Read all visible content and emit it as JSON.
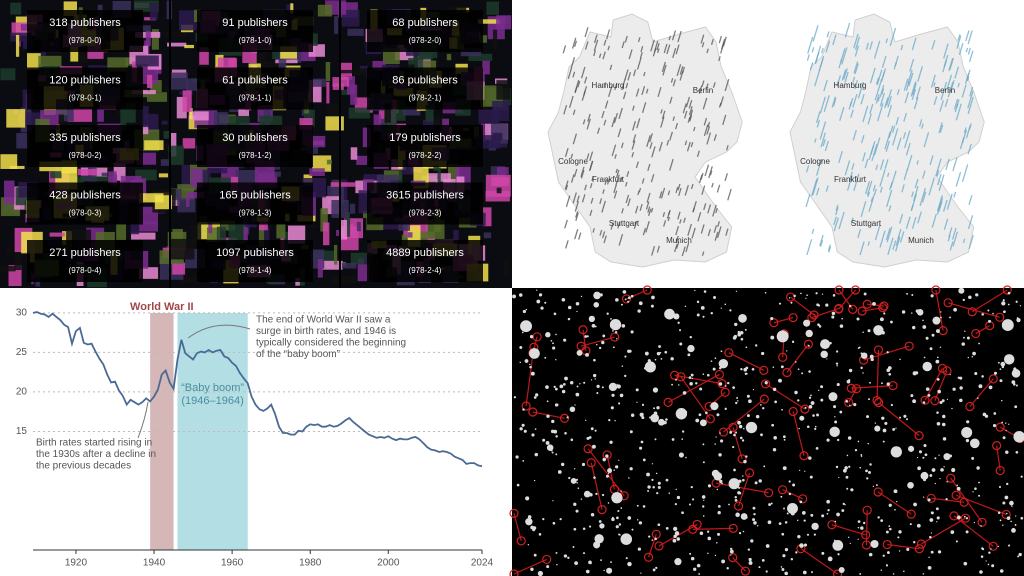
{
  "treemap": {
    "tiles": [
      {
        "count": "318 publishers",
        "prefix": "(978-0-0)"
      },
      {
        "count": "120 publishers",
        "prefix": "(978-0-1)"
      },
      {
        "count": "335 publishers",
        "prefix": "(978-0-2)"
      },
      {
        "count": "428 publishers",
        "prefix": "(978-0-3)"
      },
      {
        "count": "271 publishers",
        "prefix": "(978-0-4)"
      },
      {
        "count": "91 publishers",
        "prefix": "(978-1-0)"
      },
      {
        "count": "61 publishers",
        "prefix": "(978-1-1)"
      },
      {
        "count": "30 publishers",
        "prefix": "(978-1-2)"
      },
      {
        "count": "165 publishers",
        "prefix": "(978-1-3)"
      },
      {
        "count": "1097 publishers",
        "prefix": "(978-1-4)"
      },
      {
        "count": "68 publishers",
        "prefix": "(978-2-0)"
      },
      {
        "count": "86 publishers",
        "prefix": "(978-2-1)"
      },
      {
        "count": "179 publishers",
        "prefix": "(978-2-2)"
      },
      {
        "count": "3615 publishers",
        "prefix": "(978-2-3)"
      },
      {
        "count": "4889 publishers",
        "prefix": "(978-2-4)"
      }
    ]
  },
  "maps": [
    {
      "labels": [
        "Hamburg",
        "Berlin",
        "Cologne",
        "Frankfurt",
        "Stuttgart",
        "Munich"
      ]
    },
    {
      "labels": [
        "Hamburg",
        "Berlin",
        "Cologne",
        "Frankfurt",
        "Stuttgart",
        "Munich"
      ]
    }
  ],
  "chart_data": {
    "type": "line",
    "color": "#4a6a95",
    "x": [
      1909,
      1910,
      1911,
      1912,
      1913,
      1914,
      1915,
      1916,
      1917,
      1918,
      1919,
      1920,
      1921,
      1922,
      1923,
      1924,
      1925,
      1926,
      1927,
      1928,
      1929,
      1930,
      1931,
      1932,
      1933,
      1934,
      1935,
      1936,
      1937,
      1938,
      1939,
      1940,
      1941,
      1942,
      1943,
      1944,
      1945,
      1946,
      1947,
      1948,
      1949,
      1950,
      1951,
      1952,
      1953,
      1954,
      1955,
      1956,
      1957,
      1958,
      1959,
      1960,
      1961,
      1962,
      1963,
      1964,
      1965,
      1966,
      1967,
      1968,
      1969,
      1970,
      1971,
      1972,
      1973,
      1974,
      1975,
      1976,
      1977,
      1978,
      1979,
      1980,
      1981,
      1982,
      1983,
      1984,
      1985,
      1986,
      1987,
      1988,
      1989,
      1990,
      1991,
      1992,
      1993,
      1994,
      1995,
      1996,
      1997,
      1998,
      1999,
      2000,
      2001,
      2002,
      2003,
      2004,
      2005,
      2006,
      2007,
      2008,
      2009,
      2010,
      2011,
      2012,
      2013,
      2014,
      2015,
      2016,
      2017,
      2018,
      2019,
      2020,
      2021,
      2022,
      2023,
      2024
    ],
    "values": [
      30.0,
      30.1,
      29.9,
      29.8,
      29.5,
      29.9,
      29.5,
      29.1,
      28.5,
      28.2,
      26.1,
      27.7,
      28.1,
      26.2,
      26.0,
      26.1,
      25.1,
      24.2,
      23.5,
      22.2,
      21.2,
      21.3,
      20.2,
      19.5,
      18.4,
      19.0,
      18.7,
      18.4,
      18.7,
      19.2,
      18.8,
      19.4,
      20.3,
      22.2,
      22.7,
      21.2,
      20.4,
      24.1,
      26.6,
      24.9,
      24.5,
      24.1,
      24.9,
      25.1,
      25.0,
      25.3,
      25.0,
      25.2,
      25.3,
      24.5,
      24.3,
      23.7,
      23.3,
      22.4,
      21.7,
      21.1,
      19.4,
      18.4,
      17.8,
      17.6,
      17.9,
      18.4,
      17.2,
      15.6,
      14.8,
      14.8,
      14.6,
      14.6,
      15.1,
      15.0,
      15.6,
      15.9,
      15.8,
      15.9,
      15.6,
      15.6,
      15.8,
      15.6,
      15.7,
      16.0,
      16.4,
      16.7,
      16.2,
      15.8,
      15.4,
      15.0,
      14.6,
      14.4,
      14.2,
      14.3,
      14.2,
      14.4,
      14.1,
      13.9,
      14.1,
      14.0,
      14.0,
      14.2,
      14.3,
      14.0,
      13.5,
      13.0,
      12.7,
      12.6,
      12.4,
      12.5,
      12.4,
      12.2,
      11.8,
      11.6,
      11.4,
      10.9,
      11.0,
      11.0,
      10.7,
      10.6
    ],
    "xlim": [
      1909,
      2024
    ],
    "ylim": [
      0,
      31
    ],
    "xticks": [
      1920,
      1940,
      1960,
      1980,
      2000,
      2024
    ],
    "yticks": [
      15,
      20,
      25,
      30
    ],
    "grid": true,
    "bands": [
      {
        "label": [
          "World War II"
        ],
        "start": 1939,
        "end": 1945,
        "color": "#d5b7b7"
      },
      {
        "label": [
          "“Baby boom”",
          "(1946–1964)"
        ],
        "start": 1946,
        "end": 1964,
        "color": "#b2dee4"
      }
    ],
    "annotations": [
      {
        "lines": [
          "The end of World War II saw a",
          "surge in birth rates, and 1946 is",
          "typically considered the beginning",
          "of the “baby boom”"
        ]
      },
      {
        "lines": [
          "Birth rates started rising in",
          "the 1930s after a decline in",
          "the previous decades"
        ]
      }
    ]
  }
}
